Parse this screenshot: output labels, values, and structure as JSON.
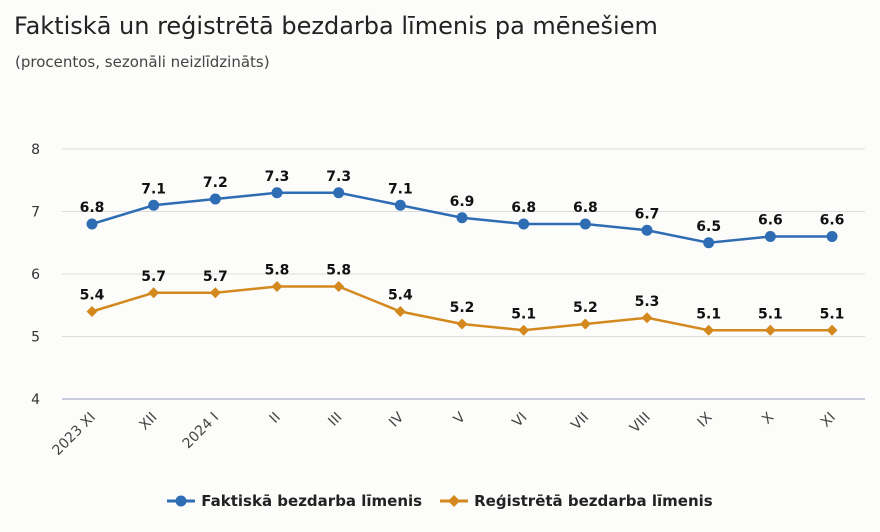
{
  "title": "Faktiskā un reģistrētā bezdarba līmenis pa mēnešiem",
  "subtitle": "(procentos, sezonāli neizlīdzināts)",
  "chart_data": {
    "type": "line",
    "categories": [
      "2023 XI",
      "XII",
      "2024 I",
      "II",
      "III",
      "IV",
      "V",
      "VI",
      "VII",
      "VIII",
      "IX",
      "X",
      "XI"
    ],
    "ylim": [
      4,
      8
    ],
    "yticks": [
      4,
      5,
      6,
      7,
      8
    ],
    "grid": true,
    "legend_position": "bottom",
    "series": [
      {
        "name": "Faktiskā bezdarba līmenis",
        "color": "#2e6db4",
        "marker": "circle",
        "values": [
          6.8,
          7.1,
          7.2,
          7.3,
          7.3,
          7.1,
          6.9,
          6.8,
          6.8,
          6.7,
          6.5,
          6.6,
          6.6
        ]
      },
      {
        "name": "Reģistrētā bezdarba līmenis",
        "color": "#d4891f",
        "marker": "diamond",
        "values": [
          5.4,
          5.7,
          5.7,
          5.8,
          5.8,
          5.4,
          5.2,
          5.1,
          5.2,
          5.3,
          5.1,
          5.1,
          5.1
        ]
      }
    ]
  }
}
